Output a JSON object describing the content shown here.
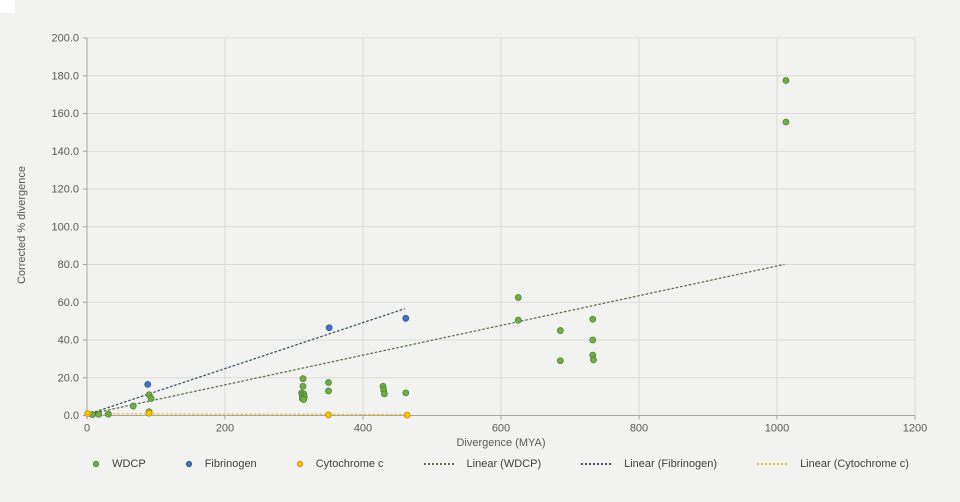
{
  "chart_data": {
    "type": "scatter",
    "title": "",
    "xlabel": "Divergence (MYA)",
    "ylabel": "Corrected % divergence",
    "xlim": [
      0,
      1200
    ],
    "ylim": [
      0,
      200
    ],
    "grid": true,
    "legend_position": "bottom",
    "x_ticks": [
      {
        "v": 0,
        "label": "0"
      },
      {
        "v": 200,
        "label": "200"
      },
      {
        "v": 400,
        "label": "400"
      },
      {
        "v": 600,
        "label": "600"
      },
      {
        "v": 800,
        "label": "800"
      },
      {
        "v": 1000,
        "label": "1000"
      },
      {
        "v": 1200,
        "label": "1200"
      }
    ],
    "y_ticks": [
      {
        "v": 0,
        "label": "0.0"
      },
      {
        "v": 20,
        "label": "20.0"
      },
      {
        "v": 40,
        "label": "40.0"
      },
      {
        "v": 60,
        "label": "60.0"
      },
      {
        "v": 80,
        "label": "80.0"
      },
      {
        "v": 100,
        "label": "100.0"
      },
      {
        "v": 120,
        "label": "120.0"
      },
      {
        "v": 140,
        "label": "140.0"
      },
      {
        "v": 160,
        "label": "160.0"
      },
      {
        "v": 180,
        "label": "180.0"
      },
      {
        "v": 200,
        "label": "200.0"
      }
    ],
    "series": [
      {
        "name": "WDCP",
        "color": "#70AD47",
        "stroke": "#548235",
        "points": [
          [
            8,
            0.5
          ],
          [
            17,
            0.6
          ],
          [
            31,
            0.7
          ],
          [
            67,
            5
          ],
          [
            90,
            11
          ],
          [
            93,
            9
          ],
          [
            90,
            2
          ],
          [
            313,
            19.5
          ],
          [
            313,
            15.5
          ],
          [
            311,
            12
          ],
          [
            314,
            11.5
          ],
          [
            312,
            10.5
          ],
          [
            315,
            10
          ],
          [
            312,
            9
          ],
          [
            314,
            8.5
          ],
          [
            350,
            17.5
          ],
          [
            350,
            13
          ],
          [
            429,
            15.5
          ],
          [
            430,
            13.5
          ],
          [
            431,
            11.5
          ],
          [
            462,
            12
          ],
          [
            625,
            62.5
          ],
          [
            625,
            50.5
          ],
          [
            686,
            45
          ],
          [
            686,
            29
          ],
          [
            733,
            51
          ],
          [
            733,
            40
          ],
          [
            733,
            32
          ],
          [
            734,
            29.5
          ],
          [
            1013,
            177.5
          ],
          [
            1013,
            155.5
          ]
        ]
      },
      {
        "name": "Fibrinogen",
        "color": "#4472C4",
        "stroke": "#2F5597",
        "points": [
          [
            88,
            16.5
          ],
          [
            351,
            46.5
          ],
          [
            462,
            51.5
          ]
        ]
      },
      {
        "name": "Cytochrome c",
        "color": "#FFC000",
        "stroke": "#BF9000",
        "points": [
          [
            1,
            1
          ],
          [
            90,
            1.2
          ],
          [
            350,
            0.3
          ],
          [
            464,
            0.2
          ]
        ]
      }
    ],
    "trendlines": [
      {
        "name": "Linear (WDCP)",
        "color": "#5F7250",
        "x1": 0,
        "y1": 0.5,
        "x2": 1010,
        "y2": 80
      },
      {
        "name": "Linear (Fibrinogen)",
        "color": "#44546A",
        "x1": 0,
        "y1": 0.5,
        "x2": 460,
        "y2": 56.5
      },
      {
        "name": "Linear (Cytochrome c)",
        "color": "#E2C03C",
        "x1": 0,
        "y1": 0.9,
        "x2": 465,
        "y2": 0.5
      }
    ],
    "axis_color": "#a6a6a6",
    "grid_color": "#d9d9d9",
    "tick_label_color": "#595959"
  }
}
